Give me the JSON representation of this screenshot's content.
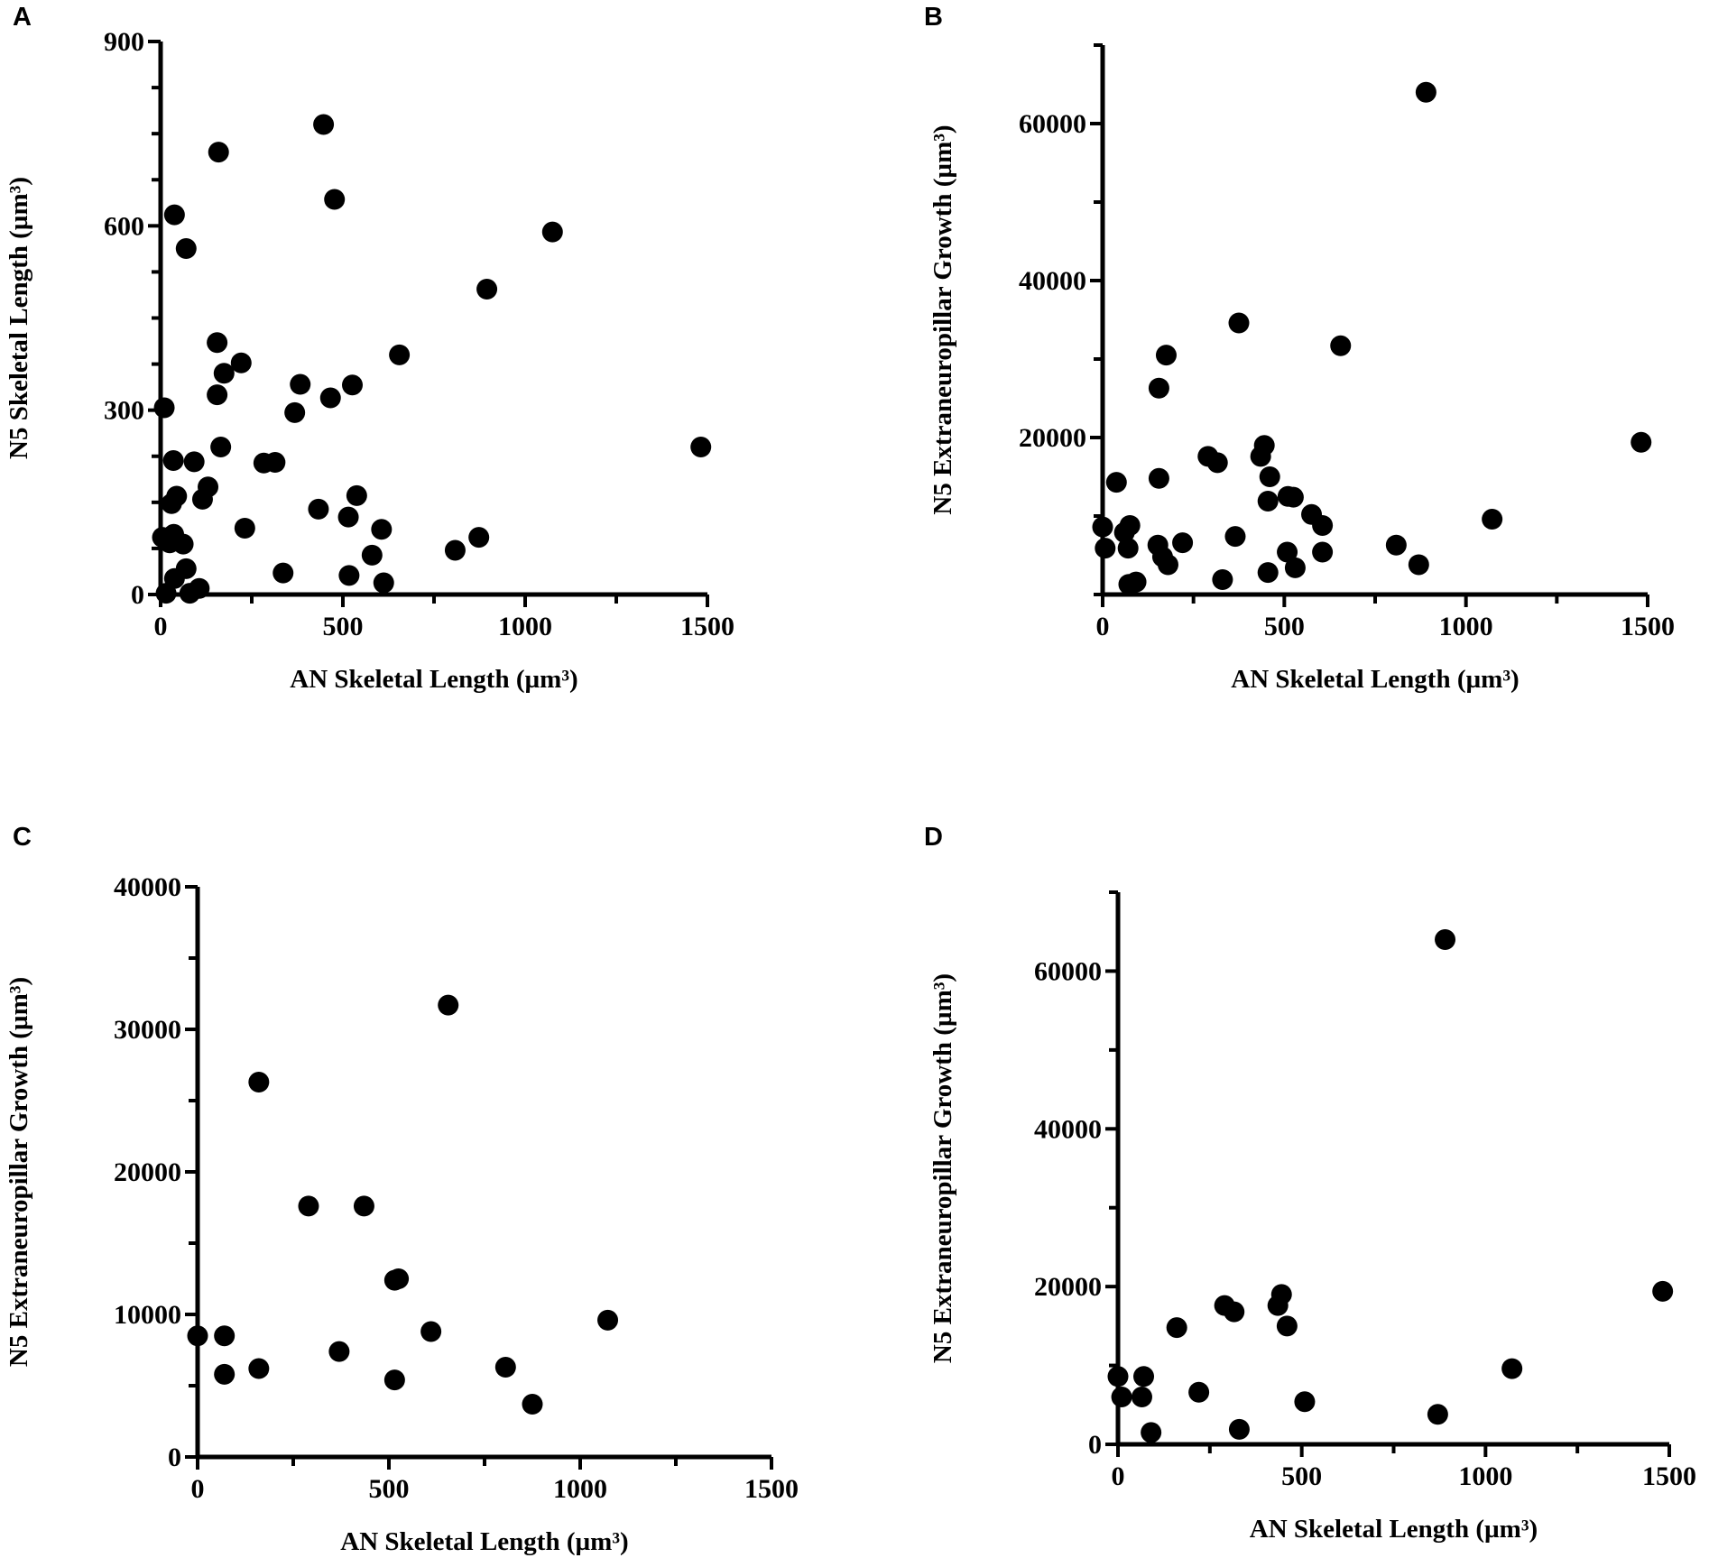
{
  "chart_data": [
    {
      "panel": "A",
      "type": "scatter",
      "xlabel": "AN Skeletal Length (µm³)",
      "ylabel": "N5 Skeletal Length (µm³)",
      "xlim": [
        0,
        1500
      ],
      "ylim": [
        0,
        900
      ],
      "xticks": [
        0,
        500,
        1000,
        1500
      ],
      "yticks": [
        0,
        300,
        600,
        900
      ],
      "x_minor": 250,
      "y_minor": 75,
      "points": [
        [
          447,
          765
        ],
        [
          159,
          720
        ],
        [
          477,
          643
        ],
        [
          38,
          618
        ],
        [
          70,
          563
        ],
        [
          1075,
          590
        ],
        [
          895,
          497
        ],
        [
          155,
          410
        ],
        [
          655,
          390
        ],
        [
          221,
          377
        ],
        [
          174,
          360
        ],
        [
          155,
          325
        ],
        [
          383,
          342
        ],
        [
          526,
          341
        ],
        [
          466,
          320
        ],
        [
          368,
          296
        ],
        [
          10,
          304
        ],
        [
          165,
          240
        ],
        [
          1482,
          240
        ],
        [
          35,
          218
        ],
        [
          92,
          216
        ],
        [
          283,
          214
        ],
        [
          314,
          215
        ],
        [
          130,
          175
        ],
        [
          44,
          160
        ],
        [
          30,
          148
        ],
        [
          115,
          155
        ],
        [
          538,
          161
        ],
        [
          433,
          139
        ],
        [
          515,
          126
        ],
        [
          231,
          108
        ],
        [
          606,
          106
        ],
        [
          873,
          93
        ],
        [
          5,
          93
        ],
        [
          36,
          98
        ],
        [
          25,
          84
        ],
        [
          62,
          82
        ],
        [
          808,
          72
        ],
        [
          580,
          64
        ],
        [
          70,
          42
        ],
        [
          336,
          35
        ],
        [
          517,
          31
        ],
        [
          38,
          26
        ],
        [
          612,
          19
        ],
        [
          106,
          10
        ],
        [
          80,
          2
        ],
        [
          15,
          2
        ]
      ]
    },
    {
      "panel": "B",
      "type": "scatter",
      "xlabel": "AN Skeletal Length (µm³)",
      "ylabel": "N5 Extraneuropillar Growth (µm³)",
      "xlim": [
        0,
        1500
      ],
      "ylim": [
        0,
        70000
      ],
      "xticks": [
        0,
        500,
        1000,
        1500
      ],
      "yticks": [
        20000,
        40000,
        60000
      ],
      "x_minor": 250,
      "y_minor": 10000,
      "points": [
        [
          890,
          64000
        ],
        [
          375,
          34600
        ],
        [
          655,
          31700
        ],
        [
          175,
          30500
        ],
        [
          155,
          26300
        ],
        [
          1482,
          19400
        ],
        [
          445,
          19000
        ],
        [
          290,
          17600
        ],
        [
          435,
          17600
        ],
        [
          316,
          16800
        ],
        [
          155,
          14800
        ],
        [
          38,
          14300
        ],
        [
          460,
          15000
        ],
        [
          455,
          11900
        ],
        [
          525,
          12400
        ],
        [
          510,
          12500
        ],
        [
          575,
          10200
        ],
        [
          1072,
          9600
        ],
        [
          0,
          8600
        ],
        [
          75,
          8800
        ],
        [
          605,
          8800
        ],
        [
          60,
          7900
        ],
        [
          365,
          7400
        ],
        [
          220,
          6600
        ],
        [
          152,
          6300
        ],
        [
          808,
          6300
        ],
        [
          7,
          5900
        ],
        [
          70,
          5900
        ],
        [
          165,
          4800
        ],
        [
          180,
          3800
        ],
        [
          508,
          5400
        ],
        [
          605,
          5400
        ],
        [
          870,
          3800
        ],
        [
          530,
          3400
        ],
        [
          455,
          2800
        ],
        [
          330,
          1900
        ],
        [
          92,
          1600
        ],
        [
          72,
          1300
        ]
      ]
    },
    {
      "panel": "C",
      "type": "scatter",
      "xlabel": "AN Skeletal Length (µm³)",
      "ylabel": "N5 Extraneuropillar Growth (µm³)",
      "xlim": [
        0,
        1500
      ],
      "ylim": [
        0,
        40000
      ],
      "xticks": [
        0,
        500,
        1000,
        1500
      ],
      "yticks": [
        0,
        10000,
        20000,
        30000,
        40000
      ],
      "x_minor": 250,
      "y_minor": 5000,
      "points": [
        [
          655,
          31700
        ],
        [
          160,
          26300
        ],
        [
          290,
          17600
        ],
        [
          435,
          17600
        ],
        [
          515,
          12400
        ],
        [
          525,
          12500
        ],
        [
          1072,
          9600
        ],
        [
          0,
          8500
        ],
        [
          70,
          8500
        ],
        [
          610,
          8800
        ],
        [
          370,
          7400
        ],
        [
          70,
          5800
        ],
        [
          160,
          6200
        ],
        [
          805,
          6300
        ],
        [
          515,
          5400
        ],
        [
          875,
          3700
        ]
      ]
    },
    {
      "panel": "D",
      "type": "scatter",
      "xlabel": "AN Skeletal Length (µm³)",
      "ylabel": "N5 Extraneuropillar Growth (µm³)",
      "xlim": [
        0,
        1500
      ],
      "ylim": [
        0,
        70000
      ],
      "xticks": [
        0,
        500,
        1000,
        1500
      ],
      "yticks": [
        0,
        20000,
        40000,
        60000
      ],
      "x_minor": 250,
      "y_minor": 10000,
      "points": [
        [
          890,
          64000
        ],
        [
          1482,
          19400
        ],
        [
          445,
          19000
        ],
        [
          290,
          17600
        ],
        [
          435,
          17600
        ],
        [
          316,
          16800
        ],
        [
          460,
          15000
        ],
        [
          160,
          14800
        ],
        [
          1072,
          9600
        ],
        [
          0,
          8600
        ],
        [
          70,
          8600
        ],
        [
          10,
          6000
        ],
        [
          65,
          6000
        ],
        [
          220,
          6600
        ],
        [
          508,
          5400
        ],
        [
          870,
          3800
        ],
        [
          90,
          1500
        ],
        [
          330,
          1900
        ]
      ]
    }
  ]
}
